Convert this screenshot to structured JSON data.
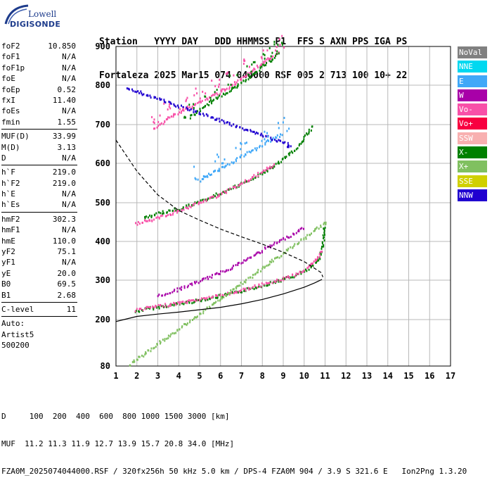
{
  "logo": {
    "line1": "Lowell",
    "line2": "DIGISONDE"
  },
  "header": {
    "labels": "Station   YYYY DAY   DDD HHMMSS P1  FFS S AXN PPS IGA PS",
    "values": "Fortaleza 2025 Mar15 074 044000 RSF 005 2 713 100 10+ 22"
  },
  "params": {
    "group1": [
      {
        "name": "foF2",
        "value": "10.850"
      },
      {
        "name": "foF1",
        "value": "N/A"
      },
      {
        "name": "foF1p",
        "value": "N/A"
      },
      {
        "name": "foE",
        "value": "N/A"
      },
      {
        "name": "foEp",
        "value": "0.52"
      },
      {
        "name": "fxI",
        "value": "11.40"
      },
      {
        "name": "foEs",
        "value": "N/A"
      },
      {
        "name": "fmin",
        "value": "1.55"
      }
    ],
    "group2": [
      {
        "name": "MUF(D)",
        "value": "33.99"
      },
      {
        "name": "M(D)",
        "value": "3.13"
      },
      {
        "name": "D",
        "value": "N/A"
      }
    ],
    "group3": [
      {
        "name": "h`F",
        "value": "219.0"
      },
      {
        "name": "h`F2",
        "value": "219.0"
      },
      {
        "name": "h`E",
        "value": "N/A"
      },
      {
        "name": "h`Es",
        "value": "N/A"
      }
    ],
    "group4": [
      {
        "name": "hmF2",
        "value": "302.3"
      },
      {
        "name": "hmF1",
        "value": "N/A"
      },
      {
        "name": "hmE",
        "value": "110.0"
      },
      {
        "name": "yF2",
        "value": "75.1"
      },
      {
        "name": "yF1",
        "value": "N/A"
      },
      {
        "name": "yE",
        "value": "20.0"
      },
      {
        "name": "B0",
        "value": "69.5"
      },
      {
        "name": "B1",
        "value": "2.68"
      }
    ],
    "group5": [
      {
        "name": "C-level",
        "value": "11"
      }
    ],
    "auto": [
      "Auto:",
      "Artist5",
      "500200"
    ]
  },
  "legend": [
    {
      "label": "NoVal",
      "color": "#808080"
    },
    {
      "label": "NNE",
      "color": "#00d8f0"
    },
    {
      "label": "E",
      "color": "#40a8f8"
    },
    {
      "label": "W",
      "color": "#a800a8"
    },
    {
      "label": "Vo-",
      "color": "#f850a8"
    },
    {
      "label": "Vo+",
      "color": "#f80040"
    },
    {
      "label": "SSW",
      "color": "#f8b0b0"
    },
    {
      "label": "X-",
      "color": "#008000"
    },
    {
      "label": "X+",
      "color": "#80c060"
    },
    {
      "label": "SSE",
      "color": "#d0d000"
    },
    {
      "label": "NNW",
      "color": "#2000d0"
    }
  ],
  "bottom": {
    "d_line": "D     100  200  400  600  800 1000 1500 3000 [km]",
    "muf_line": "MUF  11.2 11.3 11.9 12.7 13.9 15.7 20.8 34.0 [MHz]",
    "file_line": "FZA0M_2025074044000.RSF / 320fx256h 50 kHz 5.0 km / DPS-4 FZA0M 904 / 3.9 S 321.6 E   Ion2Png 1.3.20"
  },
  "chart_data": {
    "type": "scatter",
    "xlim": [
      1,
      17
    ],
    "ylim": [
      80,
      900
    ],
    "x_ticks": [
      1,
      2,
      3,
      4,
      5,
      6,
      7,
      8,
      9,
      10,
      11,
      12,
      13,
      14,
      15,
      16,
      17
    ],
    "y_ticks": [
      80,
      200,
      300,
      400,
      500,
      600,
      700,
      800,
      900
    ],
    "grid": true,
    "legend_position": "right",
    "traces": [
      {
        "name": "X-",
        "color": "#008000",
        "points": [
          [
            1.9,
            222
          ],
          [
            2.5,
            230
          ],
          [
            3.5,
            238
          ],
          [
            4.5,
            247
          ],
          [
            5.5,
            257
          ],
          [
            6.5,
            268
          ],
          [
            7.5,
            282
          ],
          [
            8.5,
            297
          ],
          [
            9.5,
            313
          ],
          [
            10.2,
            330
          ],
          [
            10.6,
            350
          ],
          [
            10.8,
            375
          ],
          [
            10.9,
            410
          ],
          [
            10.95,
            445
          ]
        ]
      },
      {
        "name": "Vo-",
        "color": "#f850a8",
        "points": [
          [
            1.9,
            226
          ],
          [
            2.5,
            232
          ],
          [
            3.5,
            240
          ],
          [
            4.5,
            249
          ],
          [
            5.5,
            259
          ],
          [
            6.5,
            270
          ],
          [
            7.5,
            284
          ],
          [
            8.5,
            298
          ],
          [
            9.5,
            316
          ],
          [
            10.2,
            335
          ],
          [
            10.6,
            356
          ],
          [
            10.8,
            380
          ]
        ]
      },
      {
        "name": "W",
        "color": "#a800a8",
        "points": [
          [
            3.0,
            262
          ],
          [
            4.0,
            280
          ],
          [
            5.0,
            300
          ],
          [
            5.8,
            318
          ],
          [
            6.5,
            335
          ],
          [
            7.2,
            355
          ],
          [
            8.0,
            380
          ],
          [
            8.7,
            400
          ],
          [
            9.4,
            420
          ],
          [
            10.0,
            440
          ]
        ]
      },
      {
        "name": "X-",
        "color": "#008000",
        "points": [
          [
            2.3,
            462
          ],
          [
            3.0,
            475
          ],
          [
            4.0,
            487
          ],
          [
            5.0,
            505
          ],
          [
            6.0,
            527
          ],
          [
            7.0,
            550
          ],
          [
            8.0,
            578
          ],
          [
            8.8,
            605
          ],
          [
            9.5,
            635
          ],
          [
            10.0,
            668
          ],
          [
            10.4,
            700
          ]
        ]
      },
      {
        "name": "Vo-",
        "color": "#f850a8",
        "points": [
          [
            1.9,
            448
          ],
          [
            2.8,
            460
          ],
          [
            3.8,
            478
          ],
          [
            4.8,
            498
          ],
          [
            5.8,
            520
          ],
          [
            6.8,
            545
          ],
          [
            7.8,
            575
          ],
          [
            8.6,
            600
          ]
        ]
      },
      {
        "name": "Vo-",
        "color": "#f850a8",
        "points": [
          [
            2.8,
            690
          ],
          [
            3.5,
            720
          ],
          [
            4.3,
            740
          ],
          [
            5.0,
            760
          ],
          [
            5.8,
            780
          ],
          [
            6.5,
            800
          ],
          [
            7.3,
            830
          ],
          [
            8.0,
            860
          ],
          [
            8.8,
            890
          ]
        ]
      },
      {
        "name": "X-",
        "color": "#008000",
        "points": [
          [
            4.5,
            720
          ],
          [
            5.5,
            760
          ],
          [
            6.5,
            790
          ],
          [
            7.5,
            830
          ],
          [
            8.2,
            860
          ],
          [
            8.8,
            885
          ]
        ]
      },
      {
        "name": "E",
        "color": "#40a8f8",
        "points": [
          [
            5.0,
            560
          ],
          [
            6.0,
            590
          ],
          [
            7.0,
            620
          ],
          [
            8.0,
            650
          ],
          [
            9.0,
            680
          ]
        ]
      },
      {
        "name": "NNW",
        "color": "#2000d0",
        "points": [
          [
            1.5,
            795
          ],
          [
            9.3,
            650
          ],
          [
            9.1,
            640
          ]
        ]
      },
      {
        "name": "X+",
        "color": "#80c060",
        "points": [
          [
            1.6,
            85
          ],
          [
            11.1,
            455
          ]
        ]
      }
    ],
    "profile_line": [
      [
        1,
        195
      ],
      [
        2,
        208
      ],
      [
        3,
        214
      ],
      [
        4,
        219
      ],
      [
        5,
        225
      ],
      [
        6,
        231
      ],
      [
        7,
        240
      ],
      [
        8,
        251
      ],
      [
        9,
        265
      ],
      [
        10,
        282
      ],
      [
        10.5,
        293
      ],
      [
        10.85,
        302
      ]
    ],
    "muf_dashed": [
      [
        1,
        660
      ],
      [
        2,
        580
      ],
      [
        3,
        520
      ],
      [
        4,
        480
      ],
      [
        5,
        455
      ],
      [
        6,
        432
      ],
      [
        7,
        412
      ],
      [
        8,
        393
      ],
      [
        9,
        372
      ],
      [
        10,
        348
      ],
      [
        10.8,
        320
      ],
      [
        10.9,
        308
      ]
    ]
  }
}
